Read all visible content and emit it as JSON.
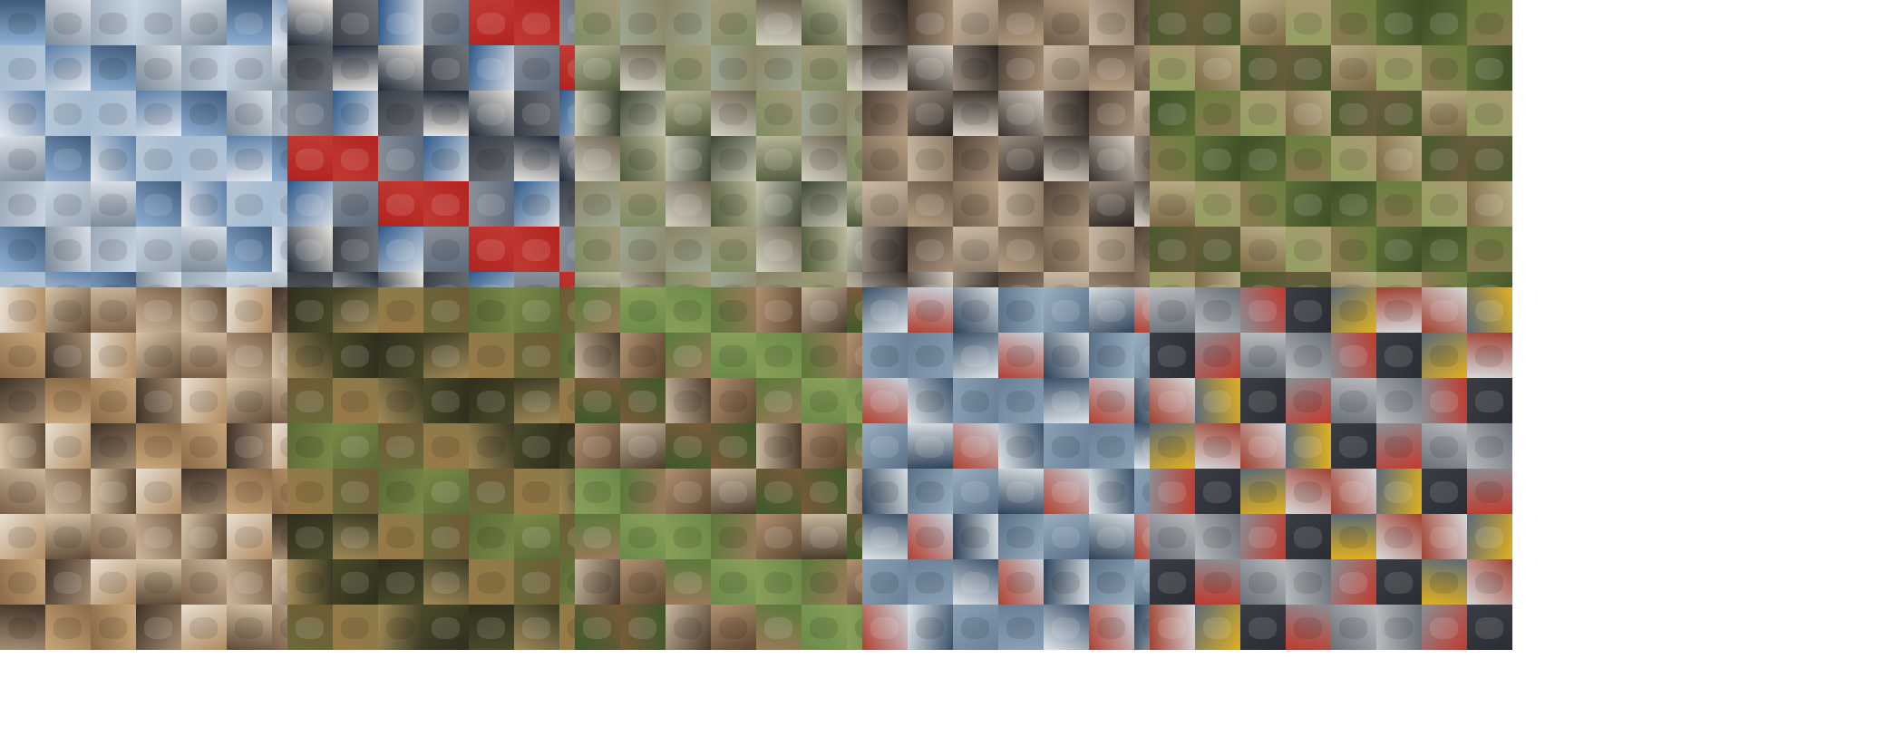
{
  "image": {
    "kind": "sample-image-grid",
    "grid": {
      "panel_rows": 2,
      "panel_cols": 5,
      "tiles_per_side": 8
    },
    "panels": [
      {
        "id": "airplane",
        "colors": [
          "#8fb1d6",
          "#c9d6e3",
          "#5b7fa8",
          "#e6e9ee",
          "#9aa7b4",
          "#3f5a7a",
          "#b8c7d8",
          "#7a8a99",
          "#d9dfe6",
          "#a3bad0"
        ]
      },
      {
        "id": "automobile",
        "colors": [
          "#3a3f47",
          "#c23a33",
          "#d8dde3",
          "#1f2a3a",
          "#8a9099",
          "#5c6b7c",
          "#e8e4de",
          "#2e5a8c",
          "#b2231f",
          "#6f747b"
        ]
      },
      {
        "id": "bird",
        "colors": [
          "#8a8466",
          "#b9b79a",
          "#4f5a3a",
          "#9fa995",
          "#6d6351",
          "#c8c7b4",
          "#7f8d63",
          "#a39a7b",
          "#3e4634",
          "#d4d2c2"
        ]
      },
      {
        "id": "cat",
        "colors": [
          "#6b5a4b",
          "#a8927a",
          "#3a322b",
          "#c9b9a4",
          "#8a7a66",
          "#d8d1c6",
          "#4e4136",
          "#b59e82",
          "#2a2420",
          "#9c8e80"
        ]
      },
      {
        "id": "deer",
        "colors": [
          "#6b7f3e",
          "#8a7a52",
          "#4a5a2e",
          "#a99a72",
          "#5d6e38",
          "#7c6a45",
          "#b8ad86",
          "#3f4f27",
          "#93a160",
          "#6a5c3d"
        ]
      },
      {
        "id": "dog",
        "colors": [
          "#b08a5f",
          "#8a6a47",
          "#d8c4a6",
          "#5e4a36",
          "#c9a67a",
          "#e8e0d4",
          "#7a6048",
          "#a58d72",
          "#3e3228",
          "#cdb79c"
        ]
      },
      {
        "id": "frog",
        "colors": [
          "#6a6a3a",
          "#4a4a2a",
          "#8a7a4a",
          "#5a6a34",
          "#a08a58",
          "#3a3a24",
          "#7a8a4a",
          "#9a7a46",
          "#2e2e1e",
          "#6e5a34"
        ]
      },
      {
        "id": "horse",
        "colors": [
          "#7a5a3a",
          "#5a7a3a",
          "#9a7a5a",
          "#3e5a2a",
          "#b09070",
          "#6a8a4a",
          "#4a3a2a",
          "#c8b8a0",
          "#8aa05a",
          "#5c4630"
        ]
      },
      {
        "id": "ship",
        "colors": [
          "#8aa0b4",
          "#c8d4de",
          "#5a7088",
          "#e0e6ea",
          "#3a5068",
          "#9ab0c0",
          "#b04030",
          "#6a8098",
          "#d8dee2",
          "#2e4258"
        ]
      },
      {
        "id": "truck",
        "colors": [
          "#8a8e94",
          "#c03a2e",
          "#d8dadc",
          "#3a3e44",
          "#6a7078",
          "#e0b020",
          "#5a6a7a",
          "#b8bcc0",
          "#2a2e34",
          "#a04030"
        ]
      }
    ]
  }
}
